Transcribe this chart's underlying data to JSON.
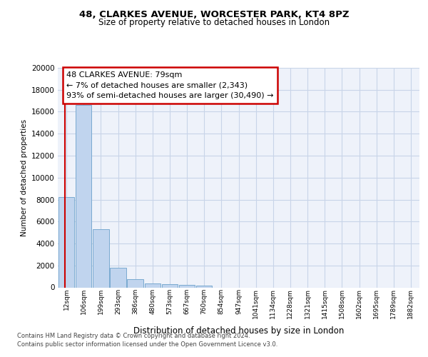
{
  "title1": "48, CLARKES AVENUE, WORCESTER PARK, KT4 8PZ",
  "title2": "Size of property relative to detached houses in London",
  "xlabel": "Distribution of detached houses by size in London",
  "ylabel": "Number of detached properties",
  "categories": [
    "12sqm",
    "106sqm",
    "199sqm",
    "293sqm",
    "386sqm",
    "480sqm",
    "573sqm",
    "667sqm",
    "760sqm",
    "854sqm",
    "947sqm",
    "1041sqm",
    "1134sqm",
    "1228sqm",
    "1321sqm",
    "1415sqm",
    "1508sqm",
    "1602sqm",
    "1695sqm",
    "1789sqm",
    "1882sqm"
  ],
  "bar_heights": [
    8200,
    16600,
    5300,
    1800,
    750,
    350,
    280,
    220,
    170,
    0,
    0,
    0,
    0,
    0,
    0,
    0,
    0,
    0,
    0,
    0,
    0
  ],
  "bar_color": "#c0d4ee",
  "bar_edge_color": "#7aaad0",
  "annotation_box_text": "48 CLARKES AVENUE: 79sqm\n← 7% of detached houses are smaller (2,343)\n93% of semi-detached houses are larger (30,490) →",
  "annotation_box_color": "#ffffff",
  "annotation_box_edge_color": "#cc0000",
  "vline_color": "#cc0000",
  "vline_x": -0.07,
  "ylim": [
    0,
    20000
  ],
  "yticks": [
    0,
    2000,
    4000,
    6000,
    8000,
    10000,
    12000,
    14000,
    16000,
    18000,
    20000
  ],
  "grid_color": "#c8d4e8",
  "bg_color": "#eef2fa",
  "footnote1": "Contains HM Land Registry data © Crown copyright and database right 2024.",
  "footnote2": "Contains public sector information licensed under the Open Government Licence v3.0."
}
